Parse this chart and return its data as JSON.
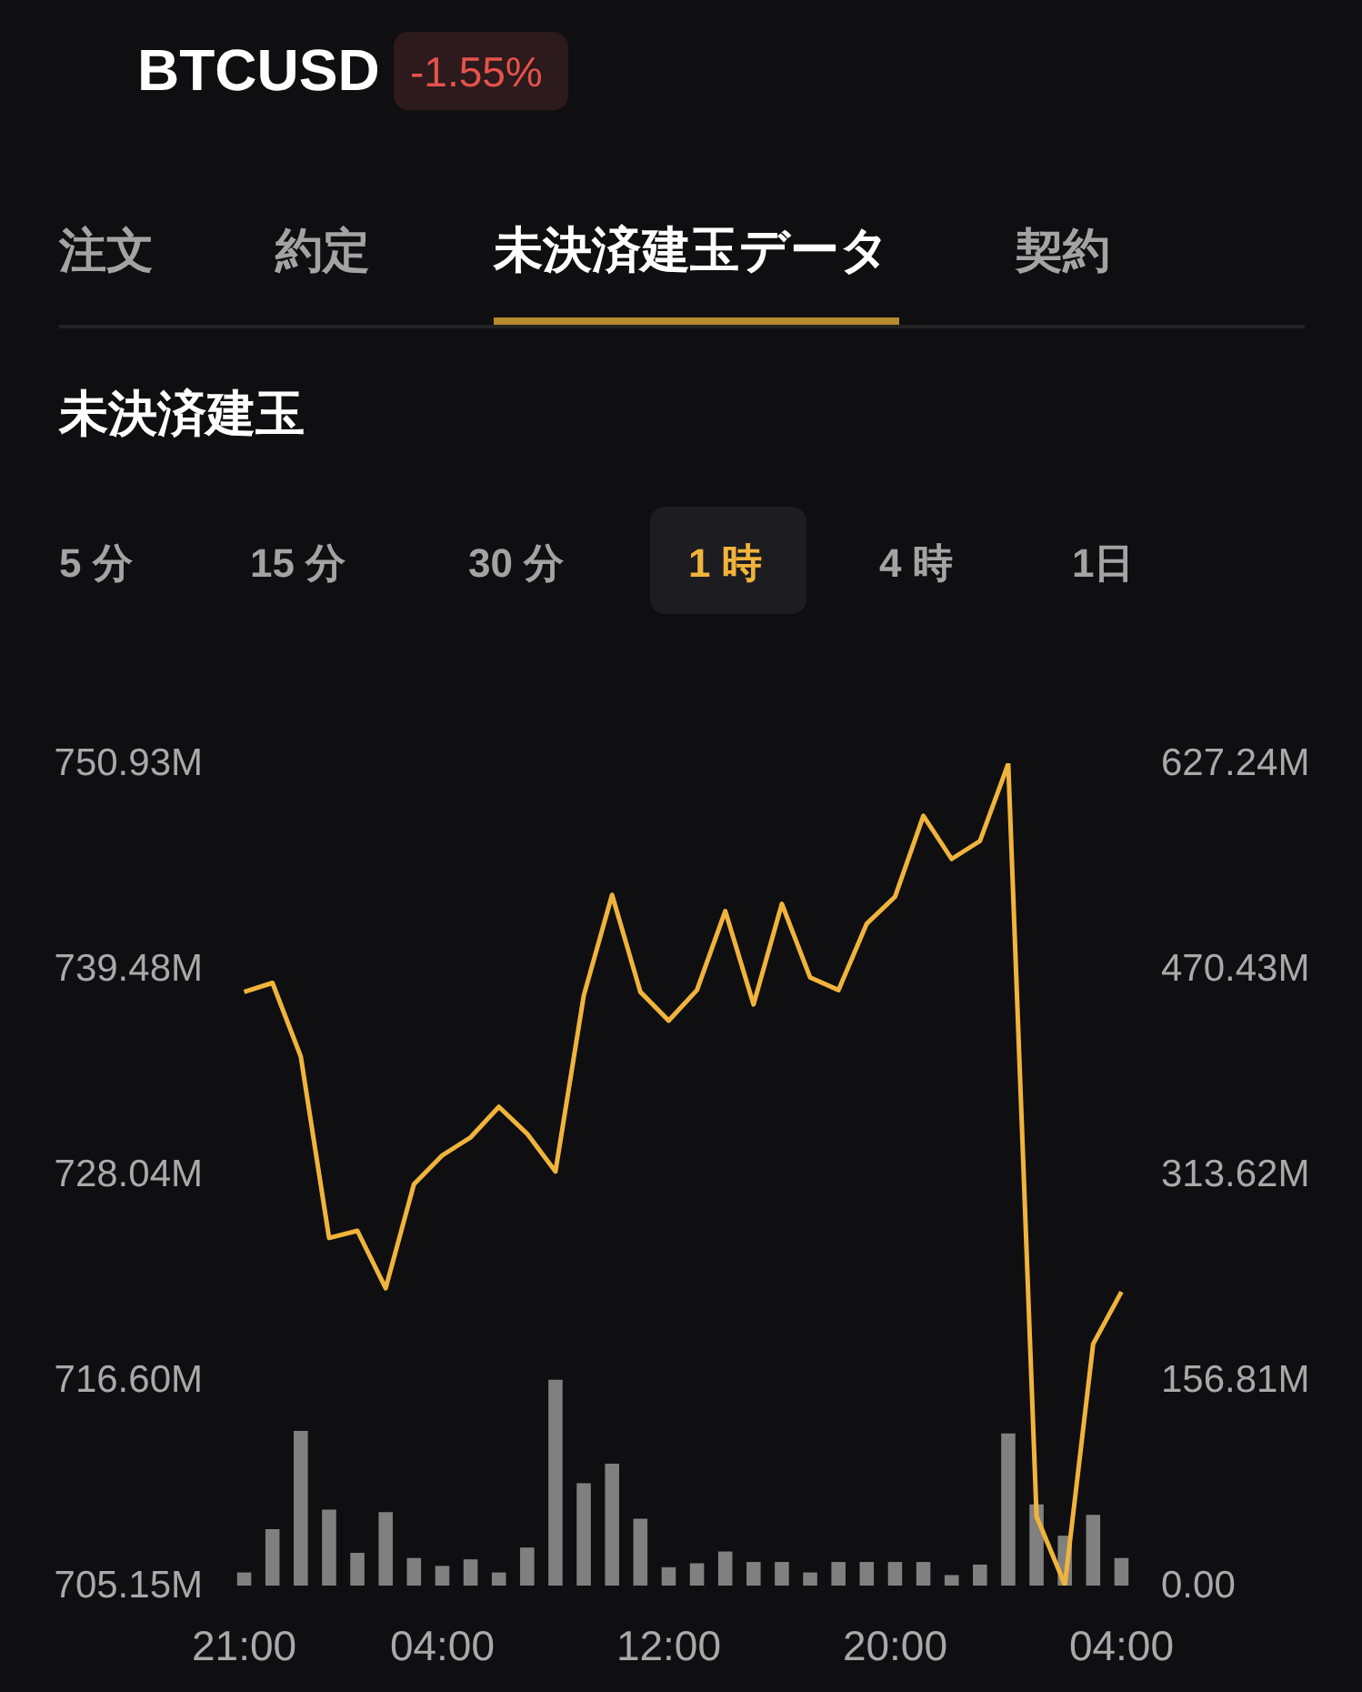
{
  "chart_data": {
    "type": "line",
    "title": "未決済建玉",
    "annotations": [
      "BTCUSD",
      "-1.55%",
      "注文",
      "約定",
      "未決済建玉データ",
      "契約",
      "5 分",
      "15 分",
      "30 分",
      "1 時",
      "4 時",
      "1日"
    ],
    "categories": [
      "21:00",
      null,
      null,
      null,
      null,
      null,
      null,
      "04:00",
      null,
      null,
      null,
      null,
      null,
      null,
      null,
      "12:00",
      null,
      null,
      null,
      null,
      null,
      null,
      null,
      "20:00",
      null,
      null,
      null,
      null,
      null,
      null,
      null,
      "04:00"
    ],
    "ylim": [
      705.15,
      750.93
    ],
    "yticks": [
      {
        "value": 705.15,
        "label": "705.15M"
      },
      {
        "value": 716.6,
        "label": "716.60M"
      },
      {
        "value": 728.04,
        "label": "728.04M"
      },
      {
        "value": 739.48,
        "label": "739.48M"
      },
      {
        "value": 750.93,
        "label": "750.93M"
      }
    ],
    "y2lim": [
      0,
      627.24
    ],
    "y2ticks": [
      {
        "value": 0,
        "label": "0.00"
      },
      {
        "value": 156.81,
        "label": "156.81M"
      },
      {
        "value": 313.62,
        "label": "313.62M"
      },
      {
        "value": 470.43,
        "label": "470.43M"
      },
      {
        "value": 627.24,
        "label": "627.24M"
      }
    ],
    "series": [
      {
        "type": "bar",
        "color": "#808080",
        "axis": "y2",
        "values": [
          10,
          43,
          118,
          58,
          25,
          56,
          21,
          15,
          20,
          10,
          29,
          157,
          78,
          93,
          51,
          14,
          17,
          26,
          18,
          18,
          10,
          18,
          18,
          18,
          18,
          8,
          16,
          116,
          62,
          38,
          54,
          21
        ]
      },
      {
        "color": "#f0b43c",
        "values": [
          738.2,
          738.7,
          734.6,
          724.5,
          724.9,
          721.7,
          727.5,
          729.1,
          730.1,
          731.8,
          730.3,
          728.2,
          738.0,
          743.6,
          738.2,
          736.6,
          738.3,
          742.7,
          737.5,
          743.1,
          739.0,
          738.3,
          742.0,
          743.5,
          748.0,
          745.6,
          746.6,
          750.9,
          709.0,
          705.2,
          718.6,
          721.5
        ]
      }
    ]
  }
}
